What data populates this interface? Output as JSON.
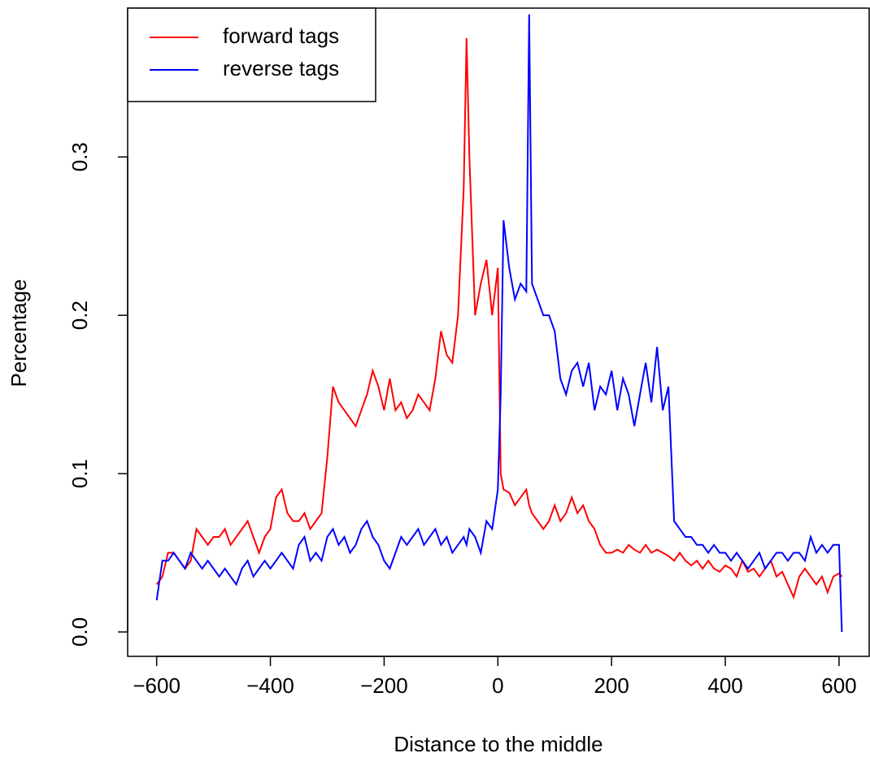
{
  "chart_data": {
    "type": "line",
    "xlabel": "Distance to the middle",
    "ylabel": "Percentage",
    "x": [
      -600,
      -590,
      -580,
      -570,
      -560,
      -550,
      -540,
      -530,
      -520,
      -510,
      -500,
      -490,
      -480,
      -470,
      -460,
      -450,
      -440,
      -430,
      -420,
      -410,
      -400,
      -390,
      -380,
      -370,
      -360,
      -350,
      -340,
      -330,
      -320,
      -310,
      -300,
      -290,
      -280,
      -270,
      -260,
      -250,
      -240,
      -230,
      -220,
      -210,
      -200,
      -190,
      -180,
      -170,
      -160,
      -150,
      -140,
      -130,
      -120,
      -110,
      -100,
      -90,
      -80,
      -70,
      -60,
      -55,
      -50,
      -40,
      -30,
      -20,
      -10,
      0,
      5,
      10,
      20,
      30,
      40,
      50,
      55,
      60,
      70,
      80,
      90,
      100,
      110,
      120,
      130,
      140,
      150,
      160,
      170,
      180,
      190,
      200,
      210,
      220,
      230,
      240,
      250,
      260,
      270,
      280,
      290,
      300,
      310,
      320,
      330,
      340,
      350,
      360,
      370,
      380,
      390,
      400,
      410,
      420,
      430,
      440,
      450,
      460,
      470,
      480,
      490,
      500,
      510,
      520,
      530,
      540,
      550,
      560,
      570,
      580,
      590,
      600,
      605
    ],
    "series": [
      {
        "name": "forward tags",
        "color": "#ff0000",
        "values": [
          0.03,
          0.035,
          0.05,
          0.05,
          0.045,
          0.04,
          0.045,
          0.065,
          0.06,
          0.055,
          0.06,
          0.06,
          0.065,
          0.055,
          0.06,
          0.065,
          0.07,
          0.06,
          0.05,
          0.06,
          0.065,
          0.085,
          0.09,
          0.075,
          0.07,
          0.07,
          0.075,
          0.065,
          0.07,
          0.075,
          0.11,
          0.155,
          0.145,
          0.14,
          0.135,
          0.13,
          0.14,
          0.15,
          0.165,
          0.155,
          0.14,
          0.16,
          0.14,
          0.145,
          0.135,
          0.14,
          0.15,
          0.145,
          0.14,
          0.16,
          0.19,
          0.175,
          0.17,
          0.2,
          0.28,
          0.375,
          0.3,
          0.2,
          0.22,
          0.235,
          0.2,
          0.23,
          0.1,
          0.09,
          0.088,
          0.08,
          0.085,
          0.09,
          0.08,
          0.075,
          0.07,
          0.065,
          0.07,
          0.08,
          0.07,
          0.075,
          0.085,
          0.075,
          0.08,
          0.07,
          0.065,
          0.055,
          0.05,
          0.05,
          0.052,
          0.05,
          0.055,
          0.052,
          0.05,
          0.055,
          0.05,
          0.052,
          0.05,
          0.048,
          0.045,
          0.05,
          0.045,
          0.042,
          0.045,
          0.04,
          0.045,
          0.04,
          0.038,
          0.042,
          0.04,
          0.035,
          0.045,
          0.038,
          0.04,
          0.035,
          0.04,
          0.045,
          0.035,
          0.038,
          0.03,
          0.022,
          0.035,
          0.04,
          0.035,
          0.03,
          0.035,
          0.025,
          0.035,
          0.037,
          0.035
        ]
      },
      {
        "name": "reverse tags",
        "color": "#0000ff",
        "values": [
          0.02,
          0.045,
          0.045,
          0.05,
          0.045,
          0.04,
          0.05,
          0.045,
          0.04,
          0.045,
          0.04,
          0.035,
          0.04,
          0.035,
          0.03,
          0.04,
          0.045,
          0.035,
          0.04,
          0.045,
          0.04,
          0.045,
          0.05,
          0.045,
          0.04,
          0.055,
          0.06,
          0.045,
          0.05,
          0.045,
          0.06,
          0.065,
          0.055,
          0.06,
          0.05,
          0.055,
          0.065,
          0.07,
          0.06,
          0.055,
          0.045,
          0.04,
          0.05,
          0.06,
          0.055,
          0.06,
          0.065,
          0.055,
          0.06,
          0.065,
          0.055,
          0.06,
          0.05,
          0.055,
          0.06,
          0.055,
          0.065,
          0.06,
          0.05,
          0.07,
          0.065,
          0.09,
          0.15,
          0.26,
          0.23,
          0.21,
          0.22,
          0.215,
          0.39,
          0.22,
          0.21,
          0.2,
          0.2,
          0.19,
          0.16,
          0.15,
          0.165,
          0.17,
          0.155,
          0.17,
          0.14,
          0.155,
          0.15,
          0.165,
          0.14,
          0.16,
          0.15,
          0.13,
          0.15,
          0.17,
          0.145,
          0.18,
          0.14,
          0.155,
          0.07,
          0.065,
          0.06,
          0.06,
          0.055,
          0.055,
          0.05,
          0.055,
          0.05,
          0.05,
          0.045,
          0.05,
          0.045,
          0.04,
          0.045,
          0.05,
          0.04,
          0.045,
          0.05,
          0.05,
          0.045,
          0.05,
          0.05,
          0.045,
          0.06,
          0.05,
          0.055,
          0.05,
          0.055,
          0.055,
          0.0
        ]
      }
    ],
    "xlim": [
      -651,
      653
    ],
    "ylim": [
      -0.0154,
      0.394
    ],
    "xticks": [
      {
        "value": -600,
        "label": "−600"
      },
      {
        "value": -400,
        "label": "−400"
      },
      {
        "value": -200,
        "label": "−200"
      },
      0,
      200,
      400,
      600
    ],
    "yticks": [
      {
        "value": 0,
        "label": "0.0"
      },
      0.1,
      0.2,
      0.3
    ],
    "legend": "top-left"
  }
}
